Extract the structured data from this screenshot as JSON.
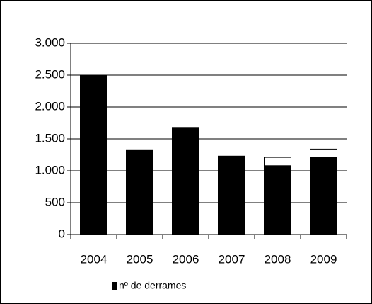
{
  "chart_data": {
    "type": "bar",
    "stacked": true,
    "categories": [
      "2004",
      "2005",
      "2006",
      "2007",
      "2008",
      "2009"
    ],
    "series": [
      {
        "name": "nº de derrames",
        "color": "#000000",
        "values": [
          2490,
          1330,
          1680,
          1230,
          1080,
          1210
        ]
      },
      {
        "color": "#ffffff",
        "values": [
          null,
          null,
          null,
          null,
          130,
          130
        ]
      }
    ],
    "ylim": [
      0,
      3000
    ],
    "yticks": [
      0,
      500,
      {
        "value": 1000,
        "label": "1.000"
      },
      {
        "value": 1500,
        "label": "1.500"
      },
      {
        "value": 2000,
        "label": "2.000"
      },
      {
        "value": 2500,
        "label": "2.500"
      },
      {
        "value": 3000,
        "label": "3.000"
      }
    ],
    "grid": true,
    "legend": "bottom"
  }
}
